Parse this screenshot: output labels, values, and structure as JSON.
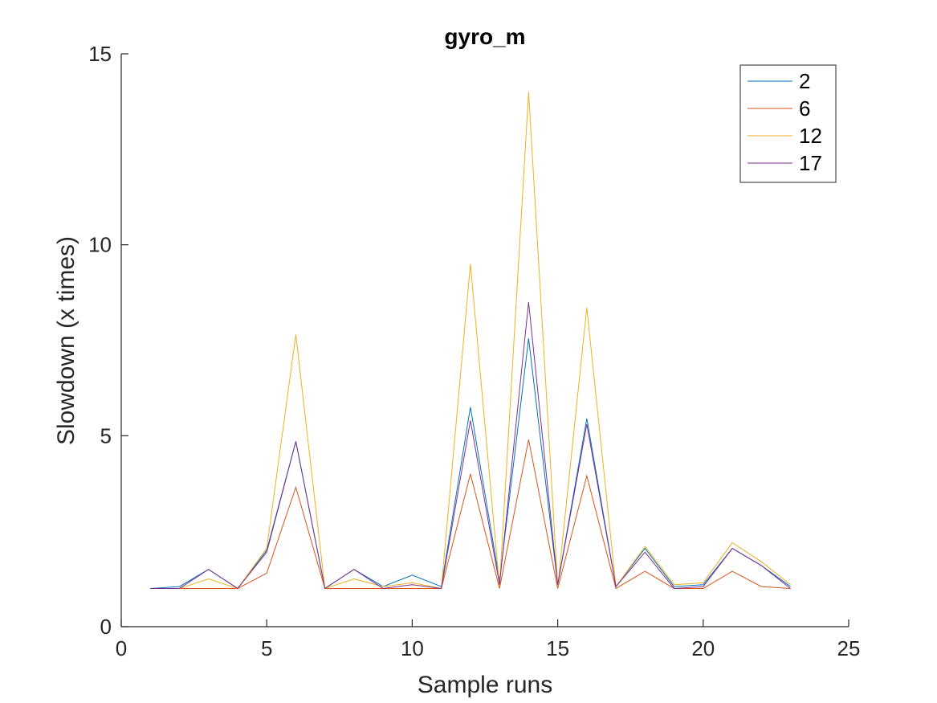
{
  "chart_data": {
    "type": "line",
    "title": "gyro_m",
    "xlabel": "Sample runs",
    "ylabel": "Slowdown (x times)",
    "xlim": [
      0,
      25
    ],
    "ylim": [
      0,
      15
    ],
    "xticks": [
      0,
      5,
      10,
      15,
      20,
      25
    ],
    "yticks": [
      0,
      5,
      10,
      15
    ],
    "grid": false,
    "legend_position": "top-right",
    "x": [
      1,
      2,
      3,
      4,
      5,
      6,
      7,
      8,
      9,
      10,
      11,
      12,
      13,
      14,
      15,
      16,
      17,
      18,
      19,
      20,
      21,
      22,
      23
    ],
    "series": [
      {
        "name": "2",
        "color": "#0072BD",
        "values": [
          1.0,
          1.05,
          1.5,
          1.0,
          2.0,
          4.85,
          1.0,
          1.5,
          1.05,
          1.35,
          1.05,
          5.75,
          1.2,
          7.55,
          1.1,
          5.45,
          1.05,
          2.05,
          1.05,
          1.1,
          2.05,
          1.6,
          1.05
        ]
      },
      {
        "name": "6",
        "color": "#D95319",
        "values": [
          1.0,
          1.0,
          1.0,
          1.0,
          1.4,
          3.65,
          1.0,
          1.0,
          1.0,
          1.0,
          1.0,
          4.0,
          1.0,
          4.9,
          1.0,
          3.95,
          1.0,
          1.45,
          1.0,
          1.0,
          1.45,
          1.05,
          1.0
        ]
      },
      {
        "name": "12",
        "color": "#EDB120",
        "values": [
          1.0,
          1.0,
          1.25,
          1.0,
          2.05,
          7.65,
          1.0,
          1.25,
          1.05,
          1.15,
          1.0,
          9.5,
          1.05,
          14.0,
          1.05,
          8.35,
          1.05,
          2.1,
          1.1,
          1.15,
          2.2,
          1.7,
          1.1
        ]
      },
      {
        "name": "17",
        "color": "#7E2F8E",
        "values": [
          1.0,
          1.0,
          1.5,
          1.0,
          1.95,
          4.85,
          1.0,
          1.5,
          1.0,
          1.1,
          1.0,
          5.4,
          1.1,
          8.5,
          1.1,
          5.3,
          1.05,
          1.95,
          1.0,
          1.05,
          2.05,
          1.6,
          1.0
        ]
      }
    ]
  }
}
